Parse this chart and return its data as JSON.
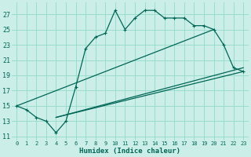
{
  "xlabel": "Humidex (Indice chaleur)",
  "bg_color": "#cceee8",
  "grid_color": "#99ddcc",
  "line_color": "#006655",
  "xlim": [
    -0.5,
    23.5
  ],
  "ylim": [
    10.5,
    28.5
  ],
  "yticks": [
    11,
    13,
    15,
    17,
    19,
    21,
    23,
    25,
    27
  ],
  "xticks": [
    0,
    1,
    2,
    3,
    4,
    5,
    6,
    7,
    8,
    9,
    10,
    11,
    12,
    13,
    14,
    15,
    16,
    17,
    18,
    19,
    20,
    21,
    22,
    23
  ],
  "curve_x": [
    0,
    1,
    2,
    3,
    4,
    5,
    6,
    7,
    8,
    9,
    10,
    11,
    12,
    13,
    14,
    15,
    16,
    17,
    18,
    19,
    20,
    21,
    22,
    23
  ],
  "curve_y": [
    15.0,
    14.5,
    13.5,
    13.0,
    11.5,
    13.0,
    17.5,
    22.5,
    24.0,
    24.5,
    27.5,
    25.0,
    26.5,
    27.5,
    27.5,
    26.5,
    26.5,
    26.5,
    25.5,
    25.5,
    25.0,
    23.0,
    20.0,
    19.5
  ],
  "line1_x": [
    0,
    20
  ],
  "line1_y": [
    15.0,
    25.0
  ],
  "line2_x": [
    4,
    23
  ],
  "line2_y": [
    13.5,
    20.0
  ],
  "line3_x": [
    4,
    23
  ],
  "line3_y": [
    13.5,
    19.5
  ]
}
